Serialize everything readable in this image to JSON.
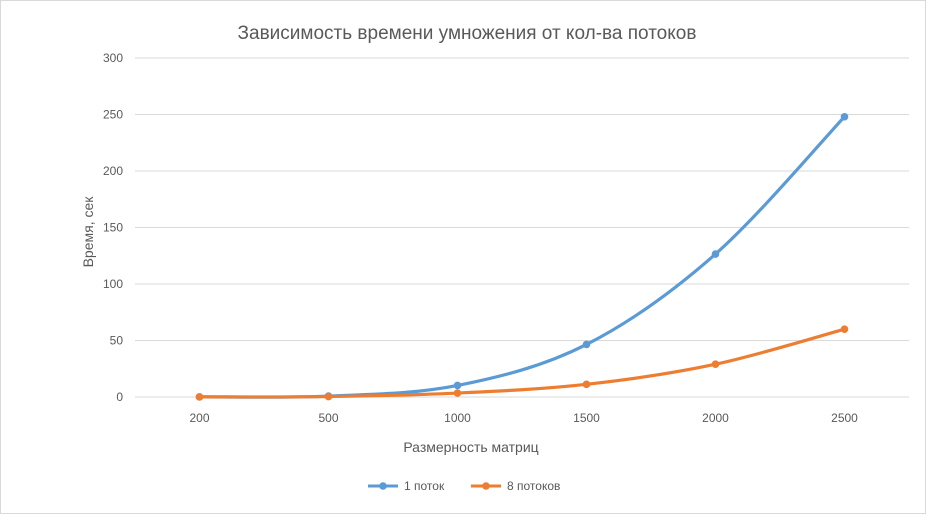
{
  "chart_data": {
    "type": "line",
    "title": "Зависимость времени умножения от кол-ва потоков",
    "xlabel": "Размерность матриц",
    "ylabel": "Время, сек",
    "categories": [
      "200",
      "500",
      "1000",
      "1500",
      "2000",
      "2500"
    ],
    "ylim": [
      0,
      300
    ],
    "yticks": [
      "0",
      "50",
      "100",
      "150",
      "200",
      "250",
      "300"
    ],
    "grid": true,
    "legend_position": "bottom",
    "series": [
      {
        "name": "1 поток",
        "color": "#5b9bd5",
        "values": [
          0.1,
          0.8,
          10.2,
          46.5,
          126.5,
          248
        ]
      },
      {
        "name": "8 потоков",
        "color": "#ed7d31",
        "values": [
          0.1,
          0.4,
          3.5,
          11.2,
          29.0,
          60.0
        ]
      }
    ]
  }
}
